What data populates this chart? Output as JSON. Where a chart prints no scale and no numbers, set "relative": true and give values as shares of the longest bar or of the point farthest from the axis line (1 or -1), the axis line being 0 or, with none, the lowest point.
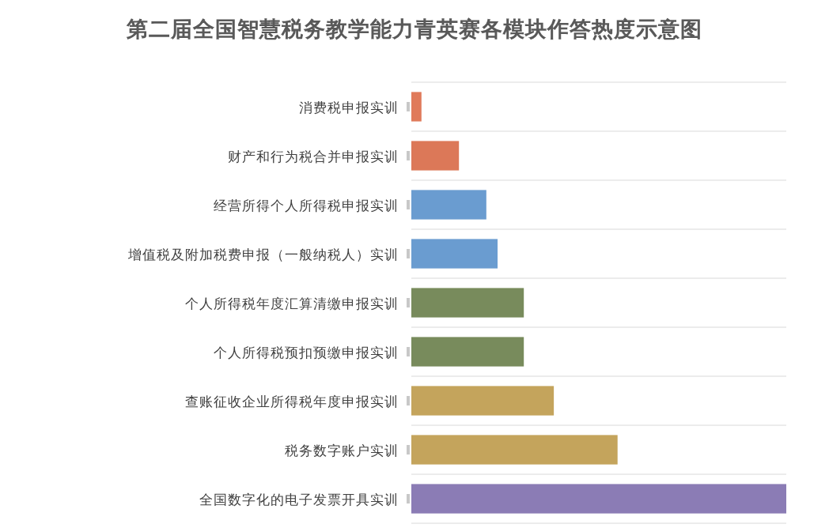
{
  "chart_data": {
    "type": "bar",
    "orientation": "horizontal",
    "relative": true,
    "grid": "y",
    "title": "第二届全国智慧税务教学能力青英赛各模块作答热度示意图",
    "categories": [
      "消费税申报实训",
      "财产和行为税合并申报实训",
      "经营所得个人所得税申报实训",
      "增值税及附加税费申报（一般纳税人）实训",
      "个人所得税年度汇算清缴申报实训",
      "个人所得税预扣预缴申报实训",
      "查账征收企业所得税年度申报实训",
      "税务数字账户实训",
      "全国数字化的电子发票开具实训"
    ],
    "values": [
      0.027,
      0.127,
      0.2,
      0.23,
      0.3,
      0.3,
      0.38,
      0.55,
      1
    ],
    "colors": [
      "#e07a5a",
      "#dc7858",
      "#6a9cd0",
      "#6a9cd0",
      "#788b5c",
      "#788b5c",
      "#c4a45c",
      "#c4a45c",
      "#8b7cb5"
    ]
  }
}
